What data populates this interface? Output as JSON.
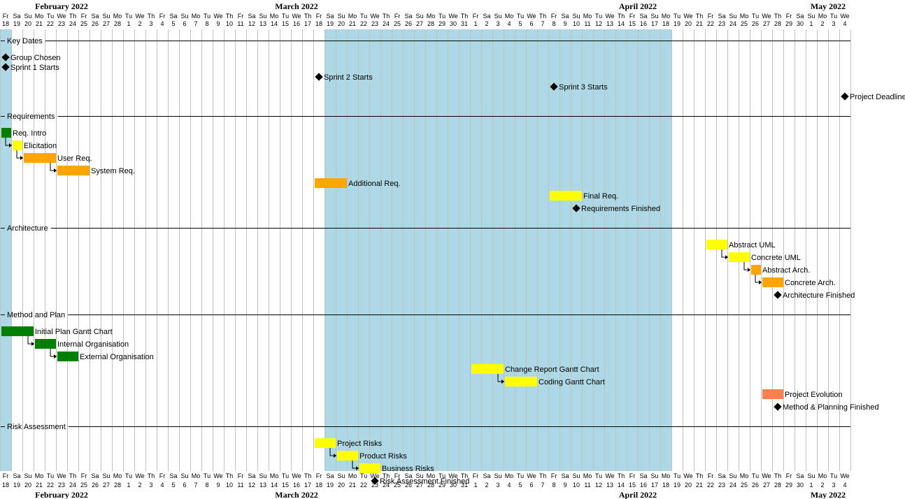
{
  "calendar": {
    "start_date": "2022-02-18",
    "end_date": "2022-05-04",
    "day_abbrev": [
      "Su",
      "Mo",
      "Tu",
      "We",
      "Th",
      "Fr",
      "Sa"
    ],
    "months": [
      {
        "label": "February 2022",
        "start": "2022-02-18",
        "end": "2022-02-28"
      },
      {
        "label": "March 2022",
        "start": "2022-03-01",
        "end": "2022-03-31"
      },
      {
        "label": "April 2022",
        "start": "2022-04-01",
        "end": "2022-04-30"
      },
      {
        "label": "May 2022",
        "start": "2022-05-01",
        "end": "2022-05-04"
      }
    ],
    "highlight_ranges": [
      {
        "start": "2022-02-18",
        "end": "2022-02-18"
      },
      {
        "start": "2022-03-19",
        "end": "2022-04-18"
      }
    ]
  },
  "colors": {
    "highlight": "#add8e6",
    "grid": "#c0c0c0",
    "green": "#008000",
    "yellow": "#ffff00",
    "orange": "#ffa500",
    "coral": "#ff7f50",
    "milestone": "#000000",
    "separator": "#000000"
  },
  "groups": [
    {
      "name": "Key Dates",
      "items": [
        {
          "type": "milestone",
          "label": "Group Chosen",
          "date": "2022-02-18"
        },
        {
          "type": "milestone",
          "label": "Sprint 1 Starts",
          "date": "2022-02-18"
        },
        {
          "type": "milestone",
          "label": "Sprint 2 Starts",
          "date": "2022-03-18"
        },
        {
          "type": "milestone",
          "label": "Sprint 3 Starts",
          "date": "2022-04-08"
        },
        {
          "type": "milestone",
          "label": "Project Deadline",
          "date": "2022-05-04"
        }
      ]
    },
    {
      "name": "Requirements",
      "items": [
        {
          "type": "task",
          "label": "Req. Intro",
          "start": "2022-02-18",
          "end": "2022-02-18",
          "color": "green"
        },
        {
          "type": "task",
          "label": "Elicitation",
          "start": "2022-02-19",
          "end": "2022-02-19",
          "color": "yellow",
          "dep": true
        },
        {
          "type": "task",
          "label": "User Req.",
          "start": "2022-02-20",
          "end": "2022-02-22",
          "color": "orange",
          "dep": true
        },
        {
          "type": "task",
          "label": "System Req.",
          "start": "2022-02-23",
          "end": "2022-02-25",
          "color": "orange",
          "dep": true
        },
        {
          "type": "task",
          "label": "Additional Req.",
          "start": "2022-03-18",
          "end": "2022-03-20",
          "color": "orange"
        },
        {
          "type": "task",
          "label": "Final Req.",
          "start": "2022-04-08",
          "end": "2022-04-10",
          "color": "yellow"
        },
        {
          "type": "milestone",
          "label": "Requirements Finished",
          "date": "2022-04-10"
        }
      ]
    },
    {
      "name": "Architecture",
      "items": [
        {
          "type": "task",
          "label": "Abstract UML",
          "start": "2022-04-22",
          "end": "2022-04-23",
          "color": "yellow"
        },
        {
          "type": "task",
          "label": "Concrete UML",
          "start": "2022-04-24",
          "end": "2022-04-25",
          "color": "yellow",
          "dep": true
        },
        {
          "type": "task",
          "label": "Abstract Arch.",
          "start": "2022-04-26",
          "end": "2022-04-26",
          "color": "orange",
          "dep": true
        },
        {
          "type": "task",
          "label": "Concrete Arch.",
          "start": "2022-04-27",
          "end": "2022-04-28",
          "color": "orange",
          "dep": true
        },
        {
          "type": "milestone",
          "label": "Architecture Finished",
          "date": "2022-04-28"
        }
      ]
    },
    {
      "name": "Method and Plan",
      "items": [
        {
          "type": "task",
          "label": "Initial Plan Gantt Chart",
          "start": "2022-02-18",
          "end": "2022-02-20",
          "color": "green"
        },
        {
          "type": "task",
          "label": "Internal Organisation",
          "start": "2022-02-21",
          "end": "2022-02-22",
          "color": "green",
          "dep": true
        },
        {
          "type": "task",
          "label": "External Organisation",
          "start": "2022-02-23",
          "end": "2022-02-24",
          "color": "green",
          "dep": true
        },
        {
          "type": "task",
          "label": "Change Report Gantt Chart",
          "start": "2022-04-01",
          "end": "2022-04-03",
          "color": "yellow"
        },
        {
          "type": "task",
          "label": "Coding Gantt Chart",
          "start": "2022-04-04",
          "end": "2022-04-06",
          "color": "yellow",
          "dep": true
        },
        {
          "type": "task",
          "label": "Project Evolution",
          "start": "2022-04-27",
          "end": "2022-04-28",
          "color": "coral"
        },
        {
          "type": "milestone",
          "label": "Method & Planning Finished",
          "date": "2022-04-28"
        }
      ]
    },
    {
      "name": "Risk Assessment",
      "items": [
        {
          "type": "task",
          "label": "Project Risks",
          "start": "2022-03-18",
          "end": "2022-03-19",
          "color": "yellow"
        },
        {
          "type": "task",
          "label": "Product Risks",
          "start": "2022-03-20",
          "end": "2022-03-21",
          "color": "yellow",
          "dep": true
        },
        {
          "type": "task",
          "label": "Business Risks",
          "start": "2022-03-22",
          "end": "2022-03-23",
          "color": "yellow",
          "dep": true
        },
        {
          "type": "milestone",
          "label": "Risk Assessment Finished",
          "date": "2022-03-23"
        }
      ]
    }
  ]
}
